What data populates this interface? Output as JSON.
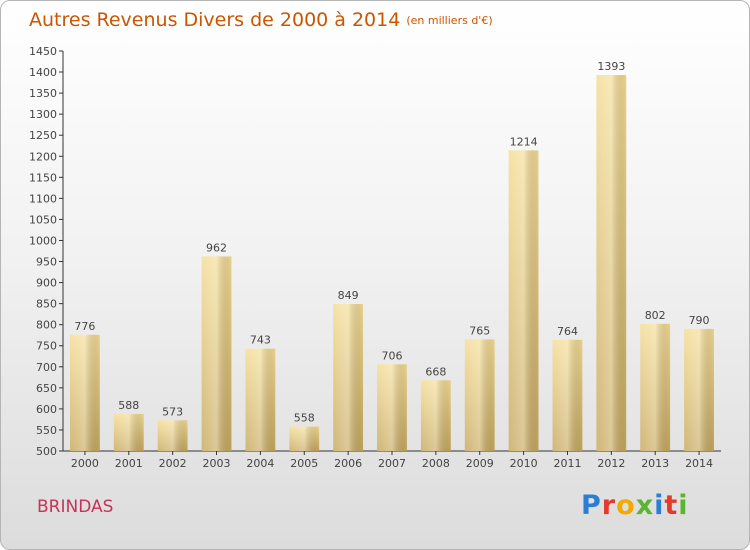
{
  "title": "Autres Revenus Divers de 2000 à 2014",
  "unit": "(en milliers d'€)",
  "commune": "BRINDAS",
  "logo": {
    "letters": [
      "P",
      "r",
      "o",
      "x",
      "i",
      "t",
      "i"
    ],
    "colors": [
      "#2a7fd4",
      "#e23b2e",
      "#f2a900",
      "#5bb531",
      "#2a7fd4",
      "#e23b2e",
      "#5bb531"
    ]
  },
  "chart_data": {
    "type": "bar",
    "title": "Autres Revenus Divers de 2000 à 2014",
    "ylabel": "",
    "xlabel": "",
    "categories": [
      "2000",
      "2001",
      "2002",
      "2003",
      "2004",
      "2005",
      "2006",
      "2007",
      "2008",
      "2009",
      "2010",
      "2011",
      "2012",
      "2013",
      "2014"
    ],
    "values": [
      776,
      588,
      573,
      962,
      743,
      558,
      849,
      706,
      668,
      765,
      1214,
      764,
      1393,
      802,
      790
    ],
    "ylim": [
      500,
      1450
    ],
    "ytick_step": 50,
    "grid": false,
    "colors": {
      "bar_light": "#f5dd95",
      "bar_dark": "#c8aa60",
      "axis": "#333333"
    }
  }
}
